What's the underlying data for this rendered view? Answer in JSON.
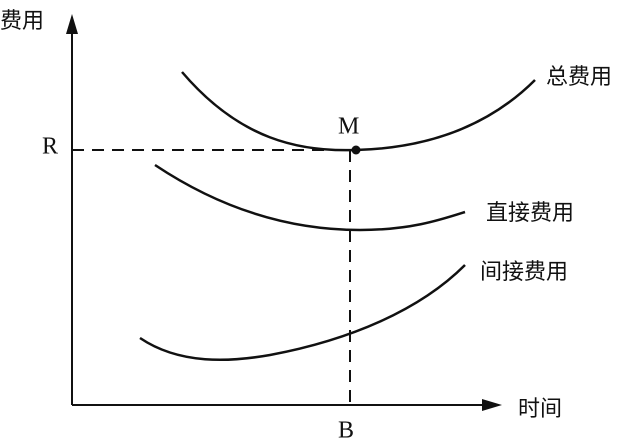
{
  "axes": {
    "y_label": "费用",
    "x_label": "时间"
  },
  "markers": {
    "y_level": "R",
    "x_level": "B",
    "point": "M"
  },
  "curves": [
    {
      "label": "总费用"
    },
    {
      "label": "直接费用"
    },
    {
      "label": "间接费用"
    }
  ]
}
